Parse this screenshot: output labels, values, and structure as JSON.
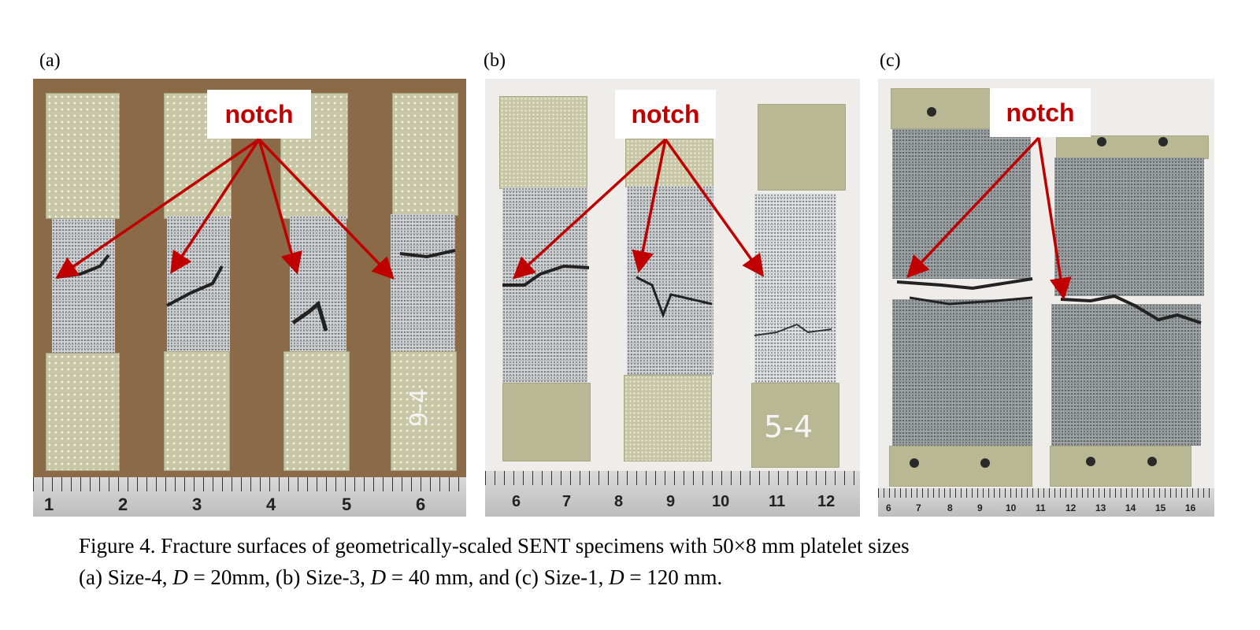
{
  "panels": [
    {
      "label": "(a)",
      "notch": "notch",
      "ruler_numbers": [
        "1",
        "2",
        "3",
        "4",
        "5",
        "6"
      ],
      "handwritten": "9-4"
    },
    {
      "label": "(b)",
      "notch": "notch",
      "ruler_numbers": [
        "6",
        "7",
        "8",
        "9",
        "10",
        "11",
        "12"
      ],
      "handwritten": "5-4"
    },
    {
      "label": "(c)",
      "notch": "notch",
      "ruler_numbers": [
        "6",
        "7",
        "8",
        "9",
        "10",
        "11",
        "12",
        "13",
        "14",
        "15",
        "16"
      ]
    }
  ],
  "caption": {
    "line1": "Figure 4. Fracture surfaces of geometrically-scaled SENT specimens with 50×8 mm platelet sizes",
    "line2_a": "(a) Size-4, ",
    "var": "D",
    "line2_b": " = 20mm, (b) Size-3, ",
    "line2_c": " = 40 mm, and (c) Size-1, ",
    "line2_d": " = 120 mm."
  },
  "colors": {
    "arrow": "#c00000",
    "background_a": "#8a6a47",
    "background_bc": "#efedea"
  }
}
